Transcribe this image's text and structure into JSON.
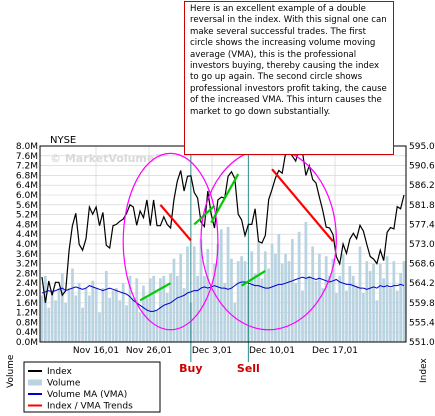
{
  "annotation": "Here is an excellent example of a double reversal in the index. With this signal one can make several successful trades. The first circle shows the increasing volume moving average (VMA), this is the professional investors buying, thereby causing the index to go up again. The second circle shows professional investors profit taking, the cause of the increased VMA. This inturn causes the market to go down substantially.",
  "chart_data": {
    "type": "line",
    "title": "NYSE",
    "watermark": "© MarketVolume™",
    "x_ticks": [
      "Nov 16,01",
      "Nov 26,01",
      "Dec 3,01",
      "Dec 10,01",
      "Dec 17,01"
    ],
    "left_axis": {
      "label": "Volume",
      "ylim": [
        0,
        8.0
      ],
      "ticks": [
        "0.0M",
        "0.4M",
        "0.8M",
        "1.2M",
        "1.6M",
        "2.0M",
        "2.4M",
        "2.8M",
        "3.2M",
        "3.6M",
        "4.0M",
        "4.4M",
        "4.8M",
        "5.2M",
        "5.6M",
        "6.0M",
        "6.4M",
        "6.8M",
        "7.2M",
        "7.6M",
        "8.0M"
      ]
    },
    "right_axis": {
      "label": "Index",
      "ylim": [
        551.0,
        595.0
      ],
      "ticks": [
        "551.0",
        "555.4",
        "559.8",
        "564.2",
        "568.6",
        "573.0",
        "577.4",
        "581.8",
        "586.2",
        "590.6",
        "595.0"
      ]
    },
    "grid": true,
    "series": [
      {
        "name": "Index",
        "color": "#000000",
        "axis": "right",
        "values": [
          565.6,
          559.8,
          564.7,
          561.5,
          564.4,
          564.4,
          561.5,
          562.5,
          571.6,
          577.1,
          579.9,
          572.9,
          571.6,
          574.2,
          581.3,
          579.7,
          581.3,
          577.1,
          580.1,
          572.7,
          572.1,
          577.1,
          577.4,
          578.1,
          578.6,
          579.9,
          581.8,
          581.3,
          577.2,
          580.4,
          578.9,
          582.9,
          577.1,
          582.9,
          577.1,
          577.1,
          579.1,
          577.4,
          576.6,
          582.9,
          587.1,
          589.5,
          584.9,
          588.2,
          588.3,
          584.6,
          583.3,
          577.9,
          576.9,
          584.9,
          579.7,
          576.6,
          582.9,
          583.5,
          583.3,
          588.2,
          589.2,
          587.7,
          579.7,
          578.4,
          574.9,
          577.4,
          577.4,
          580.9,
          573.6,
          573.2,
          574.9,
          583.0,
          585.3,
          587.8,
          589.5,
          588.9,
          593.4,
          594.0,
          592.7,
          591.6,
          594.5,
          593.6,
          588.4,
          590.6,
          587.5,
          586.7,
          583.5,
          580.5,
          576.8,
          576.6,
          575.1,
          570.2,
          568.5,
          573.0,
          570.9,
          574.1,
          575.4,
          574.2,
          577.2,
          575.9,
          572.9,
          570.2,
          569.6,
          568.6,
          571.6,
          569.3,
          575.6,
          576.7,
          576.4,
          581.4,
          580.9,
          584.0
        ]
      },
      {
        "name": "Volume",
        "color": "#b9d3e1",
        "axis": "left",
        "values": [
          1.9,
          2.7,
          1.4,
          2.1,
          1.7,
          2.2,
          2.8,
          1.6,
          2.2,
          3.0,
          1.9,
          2.4,
          1.4,
          2.2,
          1.9,
          2.5,
          2.2,
          1.2,
          2.2,
          2.9,
          1.8,
          2.1,
          2.2,
          1.7,
          2.4,
          1.5,
          2.7,
          1.8,
          2.6,
          1.2,
          2.3,
          1.8,
          2.6,
          2.7,
          1.3,
          2.6,
          2.7,
          2.0,
          2.8,
          3.4,
          2.7,
          3.6,
          2.2,
          3.9,
          1.6,
          3.9,
          2.7,
          4.2,
          2.7,
          3.8,
          2.2,
          3.2,
          4.0,
          4.6,
          2.4,
          4.7,
          3.4,
          1.6,
          3.3,
          3.5,
          3.3,
          2.3,
          3.7,
          2.8,
          4.1,
          2.6,
          3.7,
          3.0,
          4.0,
          3.6,
          4.4,
          3.2,
          3.6,
          3.3,
          4.2,
          2.4,
          4.5,
          2.1,
          4.9,
          2.7,
          3.9,
          2.5,
          3.6,
          2.2,
          3.5,
          2.7,
          3.4,
          2.0,
          2.7,
          3.6,
          2.1,
          3.1,
          2.7,
          2.3,
          3.9,
          2.0,
          3.3,
          2.9,
          3.2,
          1.7,
          3.2,
          2.6,
          3.5,
          2.2,
          3.3,
          2.1,
          2.8,
          3.3
        ]
      },
      {
        "name": "Volume MA (VMA)",
        "color": "#0000cc",
        "axis": "left",
        "values": [
          2.0,
          2.05,
          2.1,
          2.05,
          2.1,
          2.15,
          2.2,
          2.1,
          2.15,
          2.2,
          2.25,
          2.2,
          2.15,
          2.2,
          2.3,
          2.25,
          2.2,
          2.15,
          2.1,
          2.15,
          2.2,
          2.15,
          2.1,
          2.05,
          2.0,
          1.95,
          1.85,
          1.7,
          1.6,
          1.5,
          1.4,
          1.3,
          1.25,
          1.25,
          1.3,
          1.4,
          1.5,
          1.55,
          1.6,
          1.7,
          1.8,
          1.85,
          1.9,
          2.0,
          2.05,
          2.1,
          2.1,
          2.2,
          2.25,
          2.2,
          2.25,
          2.3,
          2.25,
          2.2,
          2.2,
          2.15,
          2.2,
          2.3,
          2.4,
          2.45,
          2.45,
          2.4,
          2.35,
          2.3,
          2.3,
          2.25,
          2.2,
          2.2,
          2.25,
          2.3,
          2.35,
          2.35,
          2.4,
          2.45,
          2.5,
          2.55,
          2.6,
          2.65,
          2.6,
          2.65,
          2.6,
          2.55,
          2.6,
          2.55,
          2.5,
          2.45,
          2.5,
          2.55,
          2.45,
          2.4,
          2.35,
          2.35,
          2.3,
          2.25,
          2.2,
          2.2,
          2.15,
          2.2,
          2.25,
          2.2,
          2.3,
          2.25,
          2.3,
          2.25,
          2.3,
          2.3,
          2.35,
          2.3
        ]
      },
      {
        "name": "Index / VMA Trends",
        "color": "#ff0000",
        "axis": "right",
        "values": []
      }
    ],
    "trend_lines": [
      {
        "color": "#ff0000",
        "from": [
          35,
          581.8
        ],
        "to": [
          44,
          573.8
        ]
      },
      {
        "color": "#00cc00",
        "from": [
          45,
          577.4
        ],
        "to": [
          51,
          581.6
        ]
      },
      {
        "color": "#00cc00",
        "from": [
          29,
          1.7
        ],
        "to": [
          38,
          2.4
        ]
      },
      {
        "color": "#00cc00",
        "from": [
          50,
          577.8
        ],
        "to": [
          58,
          588.7
        ]
      },
      {
        "color": "#00cc00",
        "from": [
          59,
          2.3
        ],
        "to": [
          66,
          2.9
        ]
      },
      {
        "color": "#ff0000",
        "from": [
          68,
          589.8
        ],
        "to": [
          86,
          573.6
        ]
      }
    ],
    "circles": [
      {
        "color": "#ff00ff",
        "center": [
          38,
          4.1
        ],
        "radius_x": 14,
        "radius_y": 3.6
      },
      {
        "color": "#ff00ff",
        "center": [
          67,
          4.2
        ],
        "radius_x": 20,
        "radius_y": 3.7
      }
    ],
    "signals": [
      {
        "label": "Buy",
        "color": "#cc0000",
        "x_index": 44
      },
      {
        "label": "Sell",
        "color": "#cc0000",
        "x_index": 61
      }
    ]
  }
}
